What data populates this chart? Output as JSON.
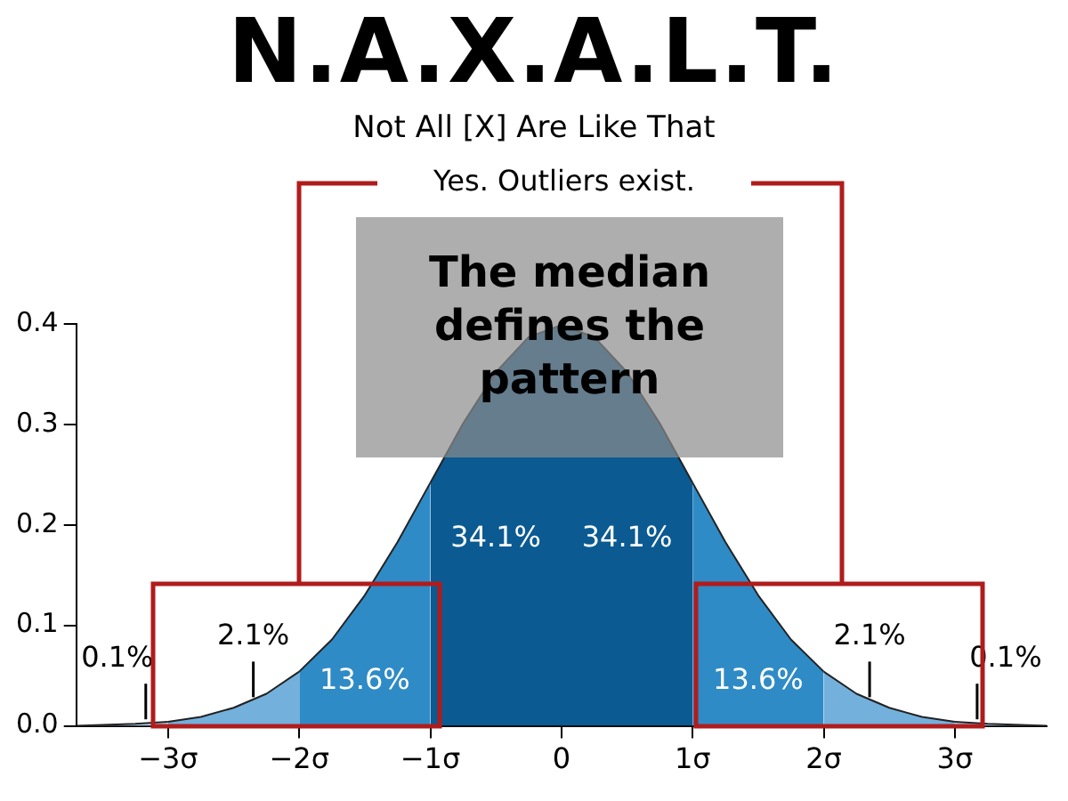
{
  "chart_data": {
    "type": "area",
    "title": "N.A.X.A.L.T.",
    "subtitle": "Not All [X] Are Like That",
    "annotations": [
      "Yes. Outliers exist.",
      "The median defines the pattern",
      "13.6%",
      "34.1%",
      "34.1%",
      "13.6%",
      {
        "text": "0.1%",
        "x": -3.17,
        "y": 0.003
      },
      {
        "text": "2.1%",
        "x": -2.35,
        "y": 0.025
      },
      {
        "text": "2.1%",
        "x": 2.35,
        "y": 0.025
      },
      {
        "text": "0.1%",
        "x": 3.17,
        "y": 0.003
      }
    ],
    "series": [
      {
        "color": "#b5d3ec",
        "x": [
          -3.7,
          -3.5,
          -3.25,
          -3
        ],
        "values": [
          0.0,
          0.001,
          0.002,
          0.004
        ]
      },
      {
        "color": "#74b0dc",
        "x": [
          -3,
          -2.75,
          -2.5,
          -2.25,
          -2
        ],
        "values": [
          0.004,
          0.009,
          0.018,
          0.032,
          0.054
        ]
      },
      {
        "color": "#2f8bc6",
        "x": [
          -2,
          -1.75,
          -1.5,
          -1.25,
          -1
        ],
        "values": [
          0.054,
          0.086,
          0.13,
          0.183,
          0.242
        ]
      },
      {
        "color": "#0b5a92",
        "x": [
          -1,
          -0.75,
          -0.5,
          -0.25,
          0,
          0.25,
          0.5,
          0.75,
          1
        ],
        "values": [
          0.242,
          0.301,
          0.352,
          0.387,
          0.399,
          0.387,
          0.352,
          0.301,
          0.242
        ]
      },
      {
        "color": "#2f8bc6",
        "x": [
          1,
          1.25,
          1.5,
          1.75,
          2
        ],
        "values": [
          0.242,
          0.183,
          0.13,
          0.086,
          0.054
        ]
      },
      {
        "color": "#74b0dc",
        "x": [
          2,
          2.25,
          2.5,
          2.75,
          3
        ],
        "values": [
          0.054,
          0.032,
          0.018,
          0.009,
          0.004
        ]
      },
      {
        "color": "#b5d3ec",
        "x": [
          3,
          3.25,
          3.5,
          3.7
        ],
        "values": [
          0.004,
          0.002,
          0.001,
          0.0
        ]
      }
    ],
    "xlim": [
      -3.7,
      3.7
    ],
    "xticks": [
      {
        "value": -3,
        "label": "−3σ"
      },
      {
        "value": -2,
        "label": "−2σ"
      },
      {
        "value": -1,
        "label": "−1σ"
      },
      0,
      {
        "value": 1,
        "label": "1σ"
      },
      {
        "value": 2,
        "label": "2σ"
      },
      {
        "value": 3,
        "label": "3σ"
      }
    ],
    "ylim": [
      0,
      0.4
    ],
    "yticks": [
      {
        "value": 0,
        "label": "0.0"
      },
      0.1,
      0.2,
      0.3,
      0.4
    ],
    "grid": false,
    "legend": false
  }
}
